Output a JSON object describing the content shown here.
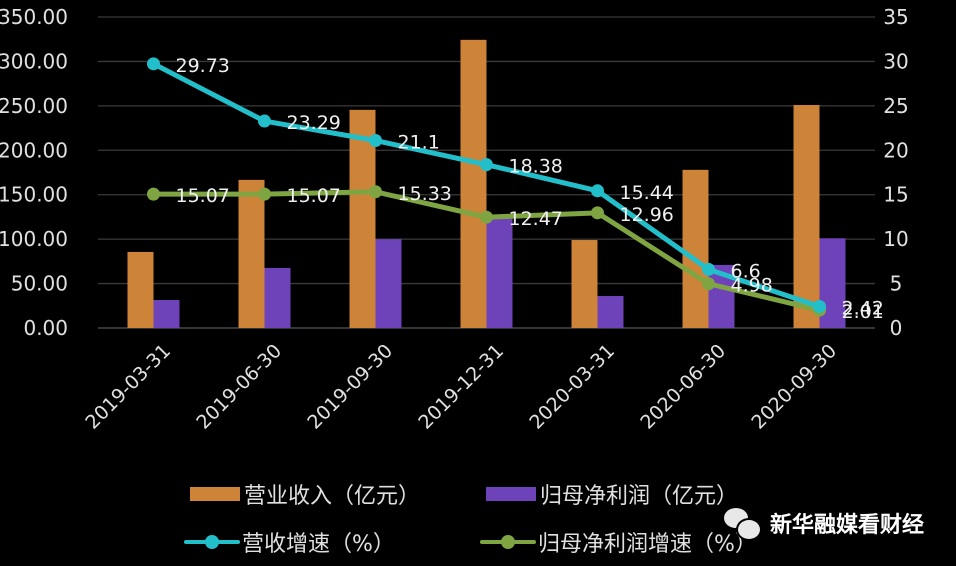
{
  "chart_data": {
    "type": "bar",
    "title": "",
    "categories": [
      "2019-03-31",
      "2019-06-30",
      "2019-09-30",
      "2019-12-31",
      "2020-03-31",
      "2020-06-30",
      "2020-09-30"
    ],
    "series": [
      {
        "name": "营业收入（亿元）",
        "type": "bar",
        "axis": "left",
        "color": "#CD8439",
        "values": [
          85.6,
          166.7,
          245.5,
          324.3,
          99.0,
          178.0,
          251.0
        ]
      },
      {
        "name": "归母净利润（亿元）",
        "type": "bar",
        "axis": "left",
        "color": "#6E42B8",
        "values": [
          31.5,
          67.6,
          100.0,
          124.0,
          36.0,
          71.0,
          101.0
        ]
      },
      {
        "name": "营收增速（%）",
        "type": "line",
        "axis": "right",
        "color": "#22BFCB",
        "values": [
          29.73,
          23.29,
          21.1,
          18.38,
          15.44,
          6.6,
          2.42
        ],
        "labels": [
          "29.73",
          "23.29",
          "21.1",
          "18.38",
          "15.44",
          "6.6",
          "2.42"
        ]
      },
      {
        "name": "归母净利润增速（%）",
        "type": "line",
        "axis": "right",
        "color": "#7FA543",
        "values": [
          15.07,
          15.07,
          15.33,
          12.47,
          12.96,
          4.98,
          2.01
        ],
        "labels": [
          "15.07",
          "15.07",
          "15.33",
          "12.47",
          "12.96",
          "4.98",
          "2.01"
        ]
      }
    ],
    "y_left": {
      "ticks": [
        "0.00",
        "50.00",
        "100.00",
        "150.00",
        "200.00",
        "250.00",
        "300.00",
        "350.00"
      ],
      "ylim": [
        0,
        350
      ]
    },
    "y_right": {
      "ticks": [
        "0",
        "5",
        "10",
        "15",
        "20",
        "25",
        "30",
        "35"
      ],
      "ylim": [
        0,
        35
      ]
    },
    "xlabel": "",
    "ylabel": "",
    "grid": true,
    "legend_position": "bottom"
  },
  "legend": {
    "items": [
      {
        "label": "营业收入（亿元）",
        "kind": "bar",
        "color": "#CD8439"
      },
      {
        "label": "归母净利润（亿元）",
        "kind": "bar",
        "color": "#6E42B8"
      },
      {
        "label": "营收增速（%）",
        "kind": "line",
        "color": "#22BFCB"
      },
      {
        "label": "归母净利润增速（%）",
        "kind": "line",
        "color": "#7FA543"
      }
    ]
  },
  "watermark": {
    "icon": "wechat-icon",
    "text": "新华融媒看财经"
  },
  "colors": {
    "background": "#000000",
    "grid": "#3a3a3a",
    "axis_text": "#e0e0e0"
  }
}
